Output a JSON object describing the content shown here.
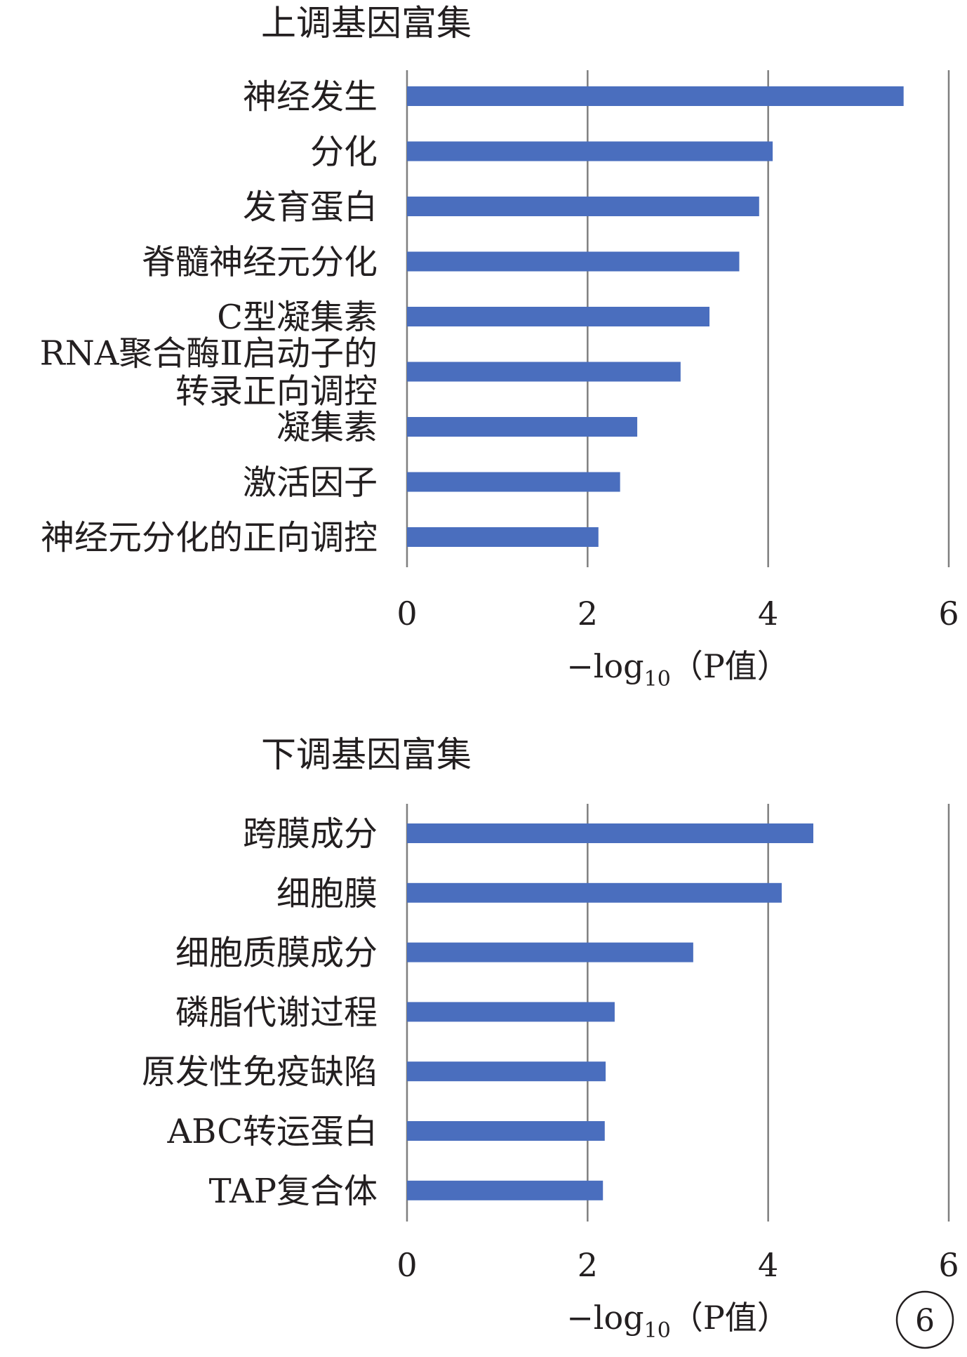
{
  "chart_data": [
    {
      "type": "bar",
      "orientation": "horizontal",
      "title": "上调基因富集",
      "categories": [
        [
          "神经发生"
        ],
        [
          "分化"
        ],
        [
          "发育蛋白"
        ],
        [
          "脊髓神经元分化"
        ],
        [
          "C型凝集素"
        ],
        [
          "RNA聚合酶Ⅱ启动子的",
          "转录正向调控"
        ],
        [
          "凝集素"
        ],
        [
          "激活因子"
        ],
        [
          "神经元分化的正向调控"
        ]
      ],
      "values": [
        5.5,
        4.05,
        3.9,
        3.68,
        3.35,
        3.03,
        2.55,
        2.36,
        2.12
      ],
      "xlim": [
        0,
        6
      ],
      "xticks": [
        "0",
        "2",
        "4",
        "6"
      ],
      "xlabel": {
        "prefix": "−log",
        "subscript": "10",
        "suffix": "（P值）"
      },
      "grid": "vertical",
      "bar_color": "#4a6ebe"
    },
    {
      "type": "bar",
      "orientation": "horizontal",
      "title": "下调基因富集",
      "categories": [
        [
          "跨膜成分"
        ],
        [
          "细胞膜"
        ],
        [
          "细胞质膜成分"
        ],
        [
          "磷脂代谢过程"
        ],
        [
          "原发性免疫缺陷"
        ],
        [
          "ABC转运蛋白"
        ],
        [
          "TAP复合体"
        ]
      ],
      "values": [
        4.5,
        4.15,
        3.17,
        2.3,
        2.2,
        2.19,
        2.17
      ],
      "xlim": [
        0,
        6
      ],
      "xticks": [
        "0",
        "2",
        "4",
        "6"
      ],
      "xlabel": {
        "prefix": "−log",
        "subscript": "10",
        "suffix": "（P值）"
      },
      "grid": "vertical",
      "bar_color": "#4a6ebe"
    }
  ],
  "panel_label": "6"
}
